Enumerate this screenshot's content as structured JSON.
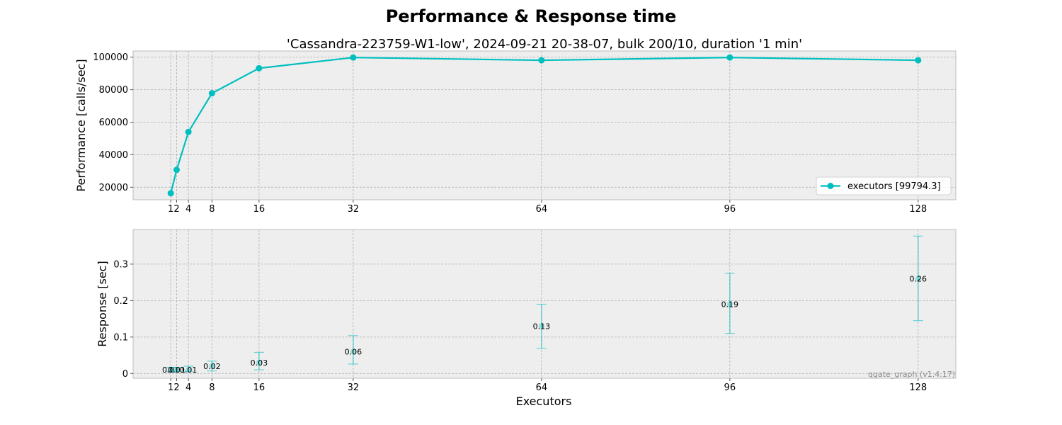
{
  "title": "Performance & Response time",
  "colors": {
    "accent": "#00bfbf",
    "plot_bg": "#eeeeee",
    "grid": "#b0b0b0",
    "watermark": "#8c8c8c"
  },
  "chart_data": [
    {
      "type": "line",
      "title": "'Cassandra-223759-W1-low', 2024-09-21 20-38-07, bulk 200/10, duration '1 min'",
      "xlabel": "",
      "ylabel": "Performance [calls/sec]",
      "x": [
        1,
        2,
        4,
        8,
        16,
        32,
        64,
        96,
        128
      ],
      "xticks": [
        1,
        2,
        4,
        8,
        16,
        32,
        64,
        96,
        128
      ],
      "xlim": [
        -5.4,
        134.4
      ],
      "yticks": [
        20000,
        40000,
        60000,
        80000,
        100000
      ],
      "ylim": [
        12300,
        103800
      ],
      "grid": true,
      "legend_placement": "lower-right",
      "series": [
        {
          "name": "executors [99794.3]",
          "values": [
            16300,
            30700,
            54000,
            77800,
            93200,
            99800,
            98100,
            99800,
            98100
          ]
        }
      ]
    },
    {
      "type": "scatter",
      "xlabel": "Executors",
      "ylabel": "Response [sec]",
      "x": [
        1,
        2,
        4,
        8,
        16,
        32,
        64,
        96,
        128
      ],
      "xticks": [
        1,
        2,
        4,
        8,
        16,
        32,
        64,
        96,
        128
      ],
      "xlim": [
        -5.4,
        134.4
      ],
      "yticks": [
        0.0,
        0.1,
        0.2,
        0.3
      ],
      "ylim": [
        -0.013,
        0.395
      ],
      "grid": true,
      "series": [
        {
          "values": [
            0.01,
            0.01,
            0.01,
            0.02,
            0.03,
            0.06,
            0.13,
            0.19,
            0.26
          ],
          "error_low": [
            0.005,
            0.005,
            0.006,
            0.007,
            0.01,
            0.026,
            0.069,
            0.11,
            0.145
          ],
          "error_high": [
            0.017,
            0.017,
            0.02,
            0.034,
            0.058,
            0.104,
            0.19,
            0.275,
            0.377
          ]
        }
      ],
      "data_labels": [
        "0.01",
        "0.01",
        "0.01",
        "0.02",
        "0.03",
        "0.06",
        "0.13",
        "0.19",
        "0.26"
      ],
      "watermark": "qgate_graph (v1.4.17)"
    }
  ]
}
